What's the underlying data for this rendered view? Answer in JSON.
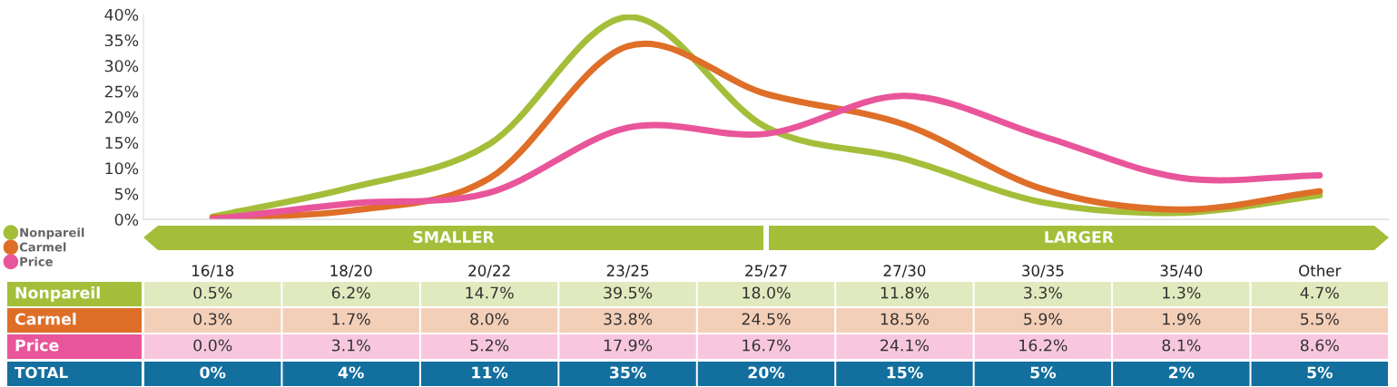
{
  "chart_data": {
    "type": "line",
    "categories": [
      "16/18",
      "18/20",
      "20/22",
      "23/25",
      "25/27",
      "27/30",
      "30/35",
      "35/40",
      "Other"
    ],
    "series": [
      {
        "name": "Nonpareil",
        "color": "#a4be3a",
        "values": [
          0.5,
          6.2,
          14.7,
          39.5,
          18.0,
          11.8,
          3.3,
          1.3,
          4.7
        ],
        "value_labels": [
          "0.5%",
          "6.2%",
          "14.7%",
          "39.5%",
          "18.0%",
          "11.8%",
          "3.3%",
          "1.3%",
          "4.7%"
        ]
      },
      {
        "name": "Carmel",
        "color": "#de6e28",
        "values": [
          0.3,
          1.7,
          8.0,
          33.8,
          24.5,
          18.5,
          5.9,
          1.9,
          5.5
        ],
        "value_labels": [
          "0.3%",
          "1.7%",
          "8.0%",
          "33.8%",
          "24.5%",
          "18.5%",
          "5.9%",
          "1.9%",
          "5.5%"
        ]
      },
      {
        "name": "Price",
        "color": "#e9559a",
        "values": [
          0.0,
          3.1,
          5.2,
          17.9,
          16.7,
          24.1,
          16.2,
          8.1,
          8.6
        ],
        "value_labels": [
          "0.0%",
          "3.1%",
          "5.2%",
          "17.9%",
          "16.7%",
          "24.1%",
          "16.2%",
          "8.1%",
          "8.6%"
        ]
      }
    ],
    "totals": [
      "0%",
      "4%",
      "11%",
      "35%",
      "20%",
      "15%",
      "5%",
      "2%",
      "5%"
    ],
    "annotations": [
      "SMALLER",
      "LARGER",
      "TOTAL"
    ],
    "ylim": [
      0,
      40
    ],
    "yticks": [
      {
        "value": 0,
        "label": "0%"
      },
      {
        "value": 5,
        "label": "5%"
      },
      {
        "value": 10,
        "label": "10%"
      },
      {
        "value": 15,
        "label": "15%"
      },
      {
        "value": 20,
        "label": "20%"
      },
      {
        "value": 25,
        "label": "25%"
      },
      {
        "value": 30,
        "label": "30%"
      },
      {
        "value": 35,
        "label": "35%"
      },
      {
        "value": 40,
        "label": "40%"
      }
    ],
    "grid": false,
    "legend": "left",
    "marker": "none",
    "line_style": "solid"
  }
}
